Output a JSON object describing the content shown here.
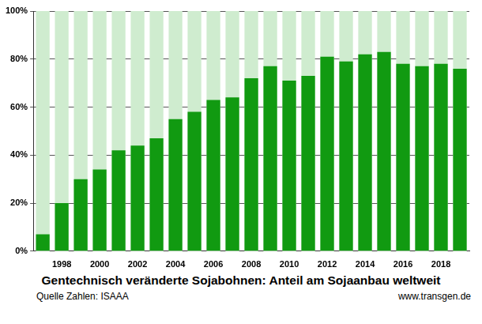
{
  "chart_data": {
    "type": "bar",
    "title": "Gentechnisch veränderte Sojabohnen: Anteil am Sojaanbau weltweit",
    "source": "Quelle Zahlen: ISAAA",
    "note": "www.transgen.de",
    "categories": [
      null,
      1998,
      null,
      2000,
      null,
      2002,
      null,
      2004,
      null,
      2006,
      null,
      2008,
      null,
      2010,
      null,
      2012,
      null,
      2014,
      null,
      2016,
      null,
      2018,
      null
    ],
    "values": [
      7,
      20,
      30,
      34,
      42,
      44,
      47,
      55,
      58,
      63,
      64,
      72,
      77,
      71,
      73,
      81,
      79,
      82,
      83,
      78,
      77,
      78,
      76
    ],
    "color": "#119a11",
    "ylim": [
      0,
      100
    ],
    "yticks": [
      {
        "value": 0,
        "label": "0%"
      },
      {
        "value": 20,
        "label": "20%"
      },
      {
        "value": 40,
        "label": "40%"
      },
      {
        "value": 60,
        "label": "60%"
      },
      {
        "value": 80,
        "label": "80%"
      },
      {
        "value": 100,
        "label": "100%"
      }
    ],
    "grid": true
  }
}
